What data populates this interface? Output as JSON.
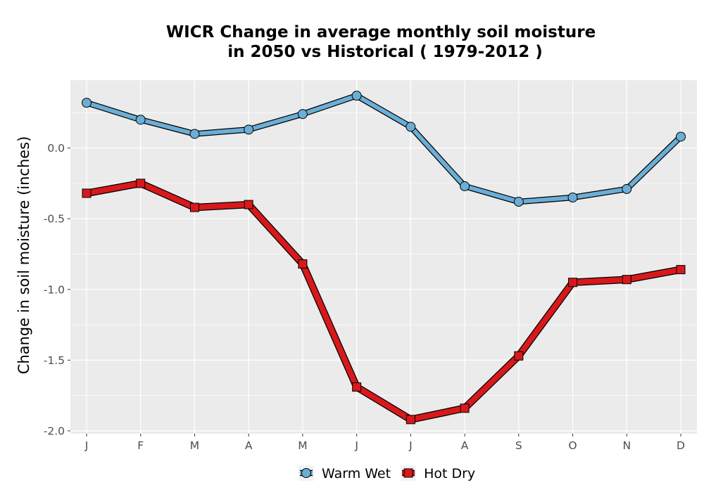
{
  "chart_data": {
    "type": "line",
    "title_line1": "WICR  Change in average monthly soil moisture",
    "title_line2": "in 2050 vs Historical ( 1979-2012 )",
    "xlabel": "",
    "ylabel": "Change in soil moisture (inches)",
    "categories": [
      "J",
      "F",
      "M",
      "A",
      "M",
      "J",
      "J",
      "A",
      "S",
      "O",
      "N",
      "D"
    ],
    "ylim": [
      -2.02,
      0.48
    ],
    "yticks": [
      0.0,
      -0.5,
      -1.0,
      -1.5,
      -2.0
    ],
    "ytick_labels": [
      "0.0",
      "-0.5",
      "-1.0",
      "-1.5",
      "-2.0"
    ],
    "grid": true,
    "legend_position": "bottom",
    "series": [
      {
        "name": "Warm Wet",
        "color": "#6baed6",
        "marker": "circle",
        "values": [
          0.32,
          0.2,
          0.1,
          0.13,
          0.24,
          0.37,
          0.15,
          -0.27,
          -0.38,
          -0.35,
          -0.29,
          0.08
        ]
      },
      {
        "name": "Hot Dry",
        "color": "#d7191c",
        "marker": "square",
        "values": [
          -0.32,
          -0.25,
          -0.42,
          -0.4,
          -0.82,
          -1.69,
          -1.92,
          -1.84,
          -1.47,
          -0.95,
          -0.93,
          -0.86
        ]
      }
    ]
  }
}
